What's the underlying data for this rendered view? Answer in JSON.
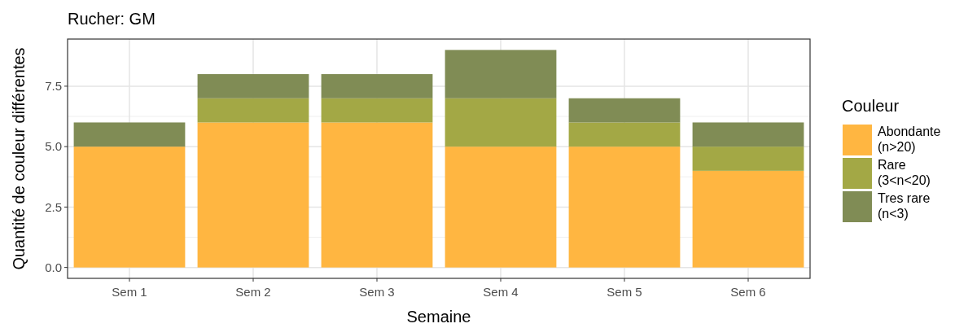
{
  "chart_data": {
    "type": "bar",
    "title": "Rucher: GM",
    "xlabel": "Semaine",
    "ylabel": "Quantité de couleur différentes",
    "legend_title": "Couleur",
    "categories": [
      "Sem 1",
      "Sem 2",
      "Sem 3",
      "Sem 4",
      "Sem 5",
      "Sem 6"
    ],
    "series": [
      {
        "name": "Abondante\n(n>20)",
        "color": "#ffb641",
        "values": [
          5,
          6,
          6,
          5,
          5,
          4
        ]
      },
      {
        "name": "Rare\n(3<n<20)",
        "color": "#a3a845",
        "values": [
          0,
          1,
          1,
          2,
          1,
          1
        ]
      },
      {
        "name": "Tres rare\n(n<3)",
        "color": "#808c55",
        "values": [
          1,
          1,
          1,
          2,
          1,
          1
        ]
      }
    ],
    "stacked": true,
    "ylim": [
      -0.45,
      9.45
    ],
    "yticks": [
      {
        "value": 0,
        "label": "0.0"
      },
      {
        "value": 2.5,
        "label": "2.5"
      },
      {
        "value": 5,
        "label": "5.0"
      },
      {
        "value": 7.5,
        "label": "7.5"
      }
    ],
    "grid": true,
    "legend": "right"
  }
}
